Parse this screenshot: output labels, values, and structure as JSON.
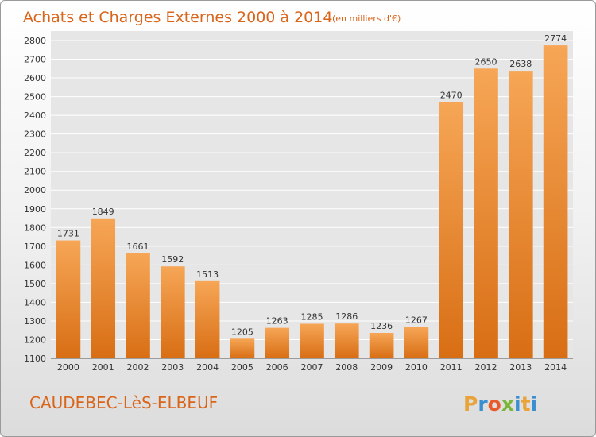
{
  "chart_data": {
    "type": "bar",
    "title": "Achats et Charges Externes 2000 à 2014",
    "subtitle": "(en milliers d'€)",
    "categories": [
      "2000",
      "2001",
      "2002",
      "2003",
      "2004",
      "2005",
      "2006",
      "2007",
      "2008",
      "2009",
      "2010",
      "2011",
      "2012",
      "2013",
      "2014"
    ],
    "values": [
      1731,
      1849,
      1661,
      1592,
      1513,
      1205,
      1263,
      1285,
      1286,
      1236,
      1267,
      2470,
      2650,
      2638,
      2774
    ],
    "ylim": [
      1100,
      2800
    ],
    "yticks": [
      1100,
      1200,
      1300,
      1400,
      1500,
      1600,
      1700,
      1800,
      1900,
      2000,
      2100,
      2200,
      2300,
      2400,
      2500,
      2600,
      2700,
      2800
    ],
    "grid": true,
    "bar_color": "#f0922e"
  },
  "footer": {
    "commune": "CAUDEBEC-LèS-ELBEUF",
    "logo_letters": [
      "P",
      "r",
      "o",
      "x",
      "i",
      "t",
      "i"
    ],
    "logo_colors": [
      "#e8a33a",
      "#3a8fd0",
      "#e85a2a",
      "#7ab63a",
      "#3a8fd0",
      "#e8a33a",
      "#3a8fd0"
    ]
  }
}
